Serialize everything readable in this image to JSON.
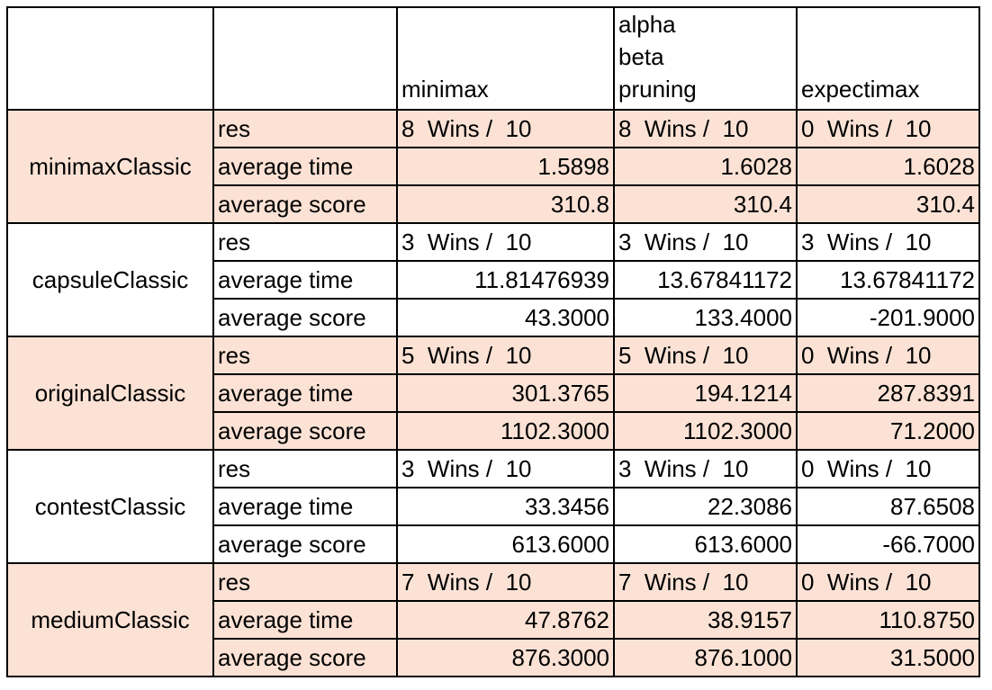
{
  "columns": [
    "",
    "",
    "minimax",
    "alpha beta pruning",
    "expectimax"
  ],
  "groups": [
    {
      "name": "minimaxClassic",
      "shaded": true,
      "rows": [
        {
          "metric": "res",
          "values": [
            "8  Wins /  10",
            "8  Wins /  10",
            "0  Wins /  10"
          ]
        },
        {
          "metric": "average time",
          "values": [
            "1.5898",
            "1.6028",
            "1.6028"
          ]
        },
        {
          "metric": "average score",
          "values": [
            "310.8",
            "310.4",
            "310.4"
          ]
        }
      ]
    },
    {
      "name": "capsuleClassic",
      "shaded": false,
      "rows": [
        {
          "metric": "res",
          "values": [
            "3  Wins /  10",
            "3  Wins /  10",
            "3  Wins /  10"
          ]
        },
        {
          "metric": "average time",
          "values": [
            "11.81476939",
            "13.67841172",
            "13.67841172"
          ]
        },
        {
          "metric": "average score",
          "values": [
            "43.3000",
            "133.4000",
            "-201.9000"
          ]
        }
      ]
    },
    {
      "name": "originalClassic",
      "shaded": true,
      "rows": [
        {
          "metric": "res",
          "values": [
            "5  Wins /  10",
            "5  Wins /  10",
            "0  Wins /  10"
          ]
        },
        {
          "metric": "average time",
          "values": [
            "301.3765",
            "194.1214",
            "287.8391"
          ]
        },
        {
          "metric": "average score",
          "values": [
            "1102.3000",
            "1102.3000",
            "71.2000"
          ]
        }
      ]
    },
    {
      "name": "contestClassic",
      "shaded": false,
      "rows": [
        {
          "metric": "res",
          "values": [
            "3  Wins /  10",
            "3  Wins /  10",
            "0  Wins /  10"
          ]
        },
        {
          "metric": "average time",
          "values": [
            "33.3456",
            "22.3086",
            "87.6508"
          ]
        },
        {
          "metric": "average score",
          "values": [
            "613.6000",
            "613.6000",
            "-66.7000"
          ]
        }
      ]
    },
    {
      "name": "mediumClassic",
      "shaded": true,
      "rows": [
        {
          "metric": "res",
          "values": [
            "7  Wins /  10",
            "7  Wins /  10",
            "0  Wins /  10"
          ]
        },
        {
          "metric": "average time",
          "values": [
            "47.8762",
            "38.9157",
            "110.8750"
          ]
        },
        {
          "metric": "average score",
          "values": [
            "876.3000",
            "876.1000",
            "31.5000"
          ]
        }
      ]
    }
  ],
  "colors": {
    "shaded_fill": "#fbe2d5",
    "plain_fill": "#ffffff",
    "grid": "#000000"
  }
}
